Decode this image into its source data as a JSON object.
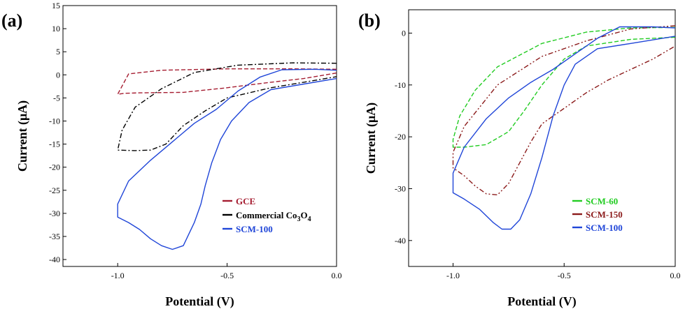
{
  "chart_data": [
    {
      "type": "line",
      "panel_label": "(a)",
      "xlabel": "Potential (V)",
      "ylabel": "Current (μA)",
      "xlim": [
        -1.25,
        0.0
      ],
      "ylim": [
        -41.5,
        15
      ],
      "x_ticks": [
        -1.0,
        -0.5,
        0.0
      ],
      "x_tick_labels": [
        "-1.0",
        "-0.5",
        "0.0"
      ],
      "y_ticks": [
        15,
        10,
        5,
        0,
        -5,
        -10,
        -15,
        -20,
        -25,
        -30,
        -35,
        -40
      ],
      "y_tick_labels": [
        "15",
        "10",
        "5",
        "0",
        "-5",
        "-10",
        "-15",
        "-20",
        "-25",
        "-30",
        "-35",
        "-40"
      ],
      "grid": false,
      "legend_position": "bottom-right",
      "series": [
        {
          "name": "GCE",
          "legend_label": {
            "text": "GCE"
          },
          "color": "#a51c30",
          "dash": "dashed",
          "points": [
            [
              0.0,
              1.2
            ],
            [
              -0.2,
              1.3
            ],
            [
              -0.5,
              1.3
            ],
            [
              -0.8,
              1.0
            ],
            [
              -0.95,
              0.2
            ],
            [
              -1.0,
              -4.2
            ],
            [
              -0.97,
              -4.0
            ],
            [
              -0.9,
              -3.9
            ],
            [
              -0.7,
              -3.8
            ],
            [
              -0.5,
              -2.8
            ],
            [
              -0.3,
              -1.6
            ],
            [
              -0.15,
              -0.8
            ],
            [
              0.0,
              0.4
            ]
          ]
        },
        {
          "name": "Commercial Co3O4",
          "legend_label": {
            "text": "Commercial Co",
            "sub1": "3",
            "mid": "O",
            "sub2": "4"
          },
          "color": "#000000",
          "dash": "dashdot",
          "points": [
            [
              0.0,
              2.5
            ],
            [
              -0.2,
              2.6
            ],
            [
              -0.45,
              2.1
            ],
            [
              -0.65,
              0.5
            ],
            [
              -0.8,
              -3.0
            ],
            [
              -0.92,
              -7.0
            ],
            [
              -0.98,
              -12.0
            ],
            [
              -1.0,
              -16.3
            ],
            [
              -0.92,
              -16.4
            ],
            [
              -0.85,
              -16.3
            ],
            [
              -0.78,
              -15.0
            ],
            [
              -0.7,
              -11.0
            ],
            [
              -0.6,
              -7.8
            ],
            [
              -0.5,
              -5.0
            ],
            [
              -0.3,
              -2.8
            ],
            [
              -0.15,
              -1.6
            ],
            [
              0.0,
              -0.4
            ]
          ]
        },
        {
          "name": "SCM-100",
          "legend_label": {
            "text": "SCM-100"
          },
          "color": "#1f45d8",
          "dash": "solid",
          "points": [
            [
              0.0,
              1.0
            ],
            [
              -0.1,
              1.2
            ],
            [
              -0.25,
              1.1
            ],
            [
              -0.35,
              -0.5
            ],
            [
              -0.45,
              -3.5
            ],
            [
              -0.55,
              -7.5
            ],
            [
              -0.65,
              -10.5
            ],
            [
              -0.75,
              -14.5
            ],
            [
              -0.85,
              -18.5
            ],
            [
              -0.95,
              -23.0
            ],
            [
              -1.0,
              -28.0
            ],
            [
              -1.0,
              -30.8
            ],
            [
              -0.95,
              -32.0
            ],
            [
              -0.9,
              -33.5
            ],
            [
              -0.85,
              -35.5
            ],
            [
              -0.8,
              -37.0
            ],
            [
              -0.75,
              -37.8
            ],
            [
              -0.7,
              -37.0
            ],
            [
              -0.65,
              -32.0
            ],
            [
              -0.62,
              -28.0
            ],
            [
              -0.6,
              -24.0
            ],
            [
              -0.57,
              -19.0
            ],
            [
              -0.53,
              -14.0
            ],
            [
              -0.48,
              -10.0
            ],
            [
              -0.4,
              -6.0
            ],
            [
              -0.3,
              -3.2
            ],
            [
              -0.15,
              -2.0
            ],
            [
              0.0,
              -0.8
            ]
          ]
        }
      ]
    },
    {
      "type": "line",
      "panel_label": "(b)",
      "xlabel": "Potential (V)",
      "ylabel": "Current (μA)",
      "xlim": [
        -1.2,
        0.0
      ],
      "ylim": [
        -45,
        4.5
      ],
      "x_ticks": [
        -1.0,
        -0.5,
        0.0
      ],
      "x_tick_labels": [
        "-1.0",
        "-0.5",
        "0.0"
      ],
      "y_ticks": [
        0,
        -10,
        -20,
        -30,
        -40
      ],
      "y_tick_labels": [
        "0",
        "-10",
        "-20",
        "-30",
        "-40"
      ],
      "grid": false,
      "legend_position": "bottom-right",
      "series": [
        {
          "name": "SCM-60",
          "legend_label": {
            "text": "SCM-60"
          },
          "color": "#22cc22",
          "dash": "dashed",
          "points": [
            [
              0.0,
              1.1
            ],
            [
              -0.2,
              1.0
            ],
            [
              -0.4,
              0.2
            ],
            [
              -0.6,
              -2.0
            ],
            [
              -0.8,
              -6.5
            ],
            [
              -0.9,
              -11.0
            ],
            [
              -0.97,
              -16.0
            ],
            [
              -1.0,
              -20.5
            ],
            [
              -1.0,
              -22.0
            ],
            [
              -0.95,
              -22.0
            ],
            [
              -0.85,
              -21.5
            ],
            [
              -0.75,
              -19.0
            ],
            [
              -0.68,
              -15.0
            ],
            [
              -0.6,
              -10.0
            ],
            [
              -0.5,
              -5.0
            ],
            [
              -0.4,
              -2.5
            ],
            [
              -0.2,
              -1.2
            ],
            [
              0.0,
              -0.8
            ]
          ]
        },
        {
          "name": "SCM-150",
          "legend_label": {
            "text": "SCM-150"
          },
          "color": "#8b1a1a",
          "dash": "dashdotdot",
          "points": [
            [
              0.0,
              1.4
            ],
            [
              -0.2,
              0.8
            ],
            [
              -0.4,
              -1.5
            ],
            [
              -0.6,
              -4.5
            ],
            [
              -0.8,
              -10.0
            ],
            [
              -0.95,
              -18.0
            ],
            [
              -1.0,
              -23.0
            ],
            [
              -1.0,
              -26.0
            ],
            [
              -0.95,
              -27.5
            ],
            [
              -0.9,
              -29.5
            ],
            [
              -0.85,
              -31.0
            ],
            [
              -0.8,
              -31.2
            ],
            [
              -0.75,
              -29.0
            ],
            [
              -0.7,
              -25.0
            ],
            [
              -0.65,
              -21.0
            ],
            [
              -0.6,
              -17.5
            ],
            [
              -0.5,
              -14.5
            ],
            [
              -0.4,
              -11.5
            ],
            [
              -0.3,
              -9.0
            ],
            [
              -0.2,
              -7.0
            ],
            [
              -0.1,
              -5.0
            ],
            [
              0.0,
              -2.5
            ]
          ]
        },
        {
          "name": "SCM-100",
          "legend_label": {
            "text": "SCM-100"
          },
          "color": "#1f45d8",
          "dash": "solid",
          "points": [
            [
              0.0,
              1.0
            ],
            [
              -0.1,
              1.2
            ],
            [
              -0.25,
              1.2
            ],
            [
              -0.35,
              -1.0
            ],
            [
              -0.45,
              -4.0
            ],
            [
              -0.55,
              -7.0
            ],
            [
              -0.65,
              -9.5
            ],
            [
              -0.75,
              -12.5
            ],
            [
              -0.85,
              -16.5
            ],
            [
              -0.95,
              -22.0
            ],
            [
              -1.0,
              -27.0
            ],
            [
              -1.0,
              -30.8
            ],
            [
              -0.95,
              -32.0
            ],
            [
              -0.88,
              -34.0
            ],
            [
              -0.82,
              -36.5
            ],
            [
              -0.78,
              -37.8
            ],
            [
              -0.74,
              -37.8
            ],
            [
              -0.7,
              -36.0
            ],
            [
              -0.65,
              -31.0
            ],
            [
              -0.6,
              -24.0
            ],
            [
              -0.55,
              -16.0
            ],
            [
              -0.5,
              -10.0
            ],
            [
              -0.45,
              -6.0
            ],
            [
              -0.35,
              -3.0
            ],
            [
              -0.2,
              -2.0
            ],
            [
              0.0,
              -0.6
            ]
          ]
        }
      ]
    }
  ]
}
